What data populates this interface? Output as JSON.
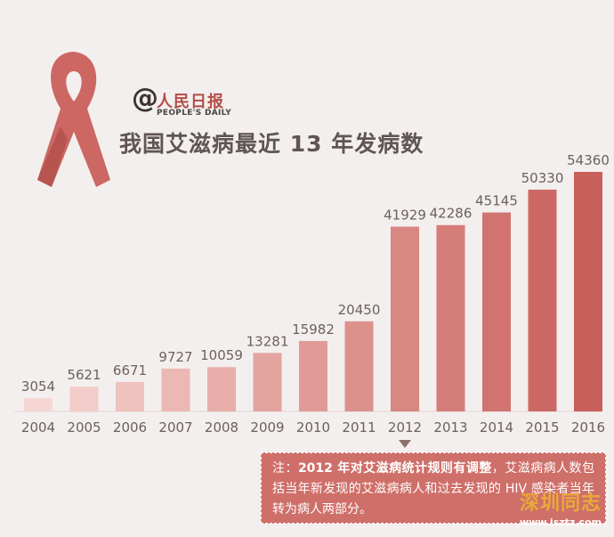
{
  "brand": {
    "at_symbol": "@",
    "name": "人民日报",
    "english": "PEOPLE'S DAILY"
  },
  "title": "我国艾滋病最近 13 年发病数",
  "colors": {
    "background": "#f3efee",
    "bar_light": "#f6d6d2",
    "bar_dark": "#c95f5b",
    "text": "#5f5554",
    "accent": "#b24d49",
    "note_bg": "#cf6f69"
  },
  "chart_data": {
    "type": "bar",
    "title": "我国艾滋病最近 13 年发病数",
    "xlabel": "",
    "ylabel": "",
    "categories": [
      "2004",
      "2005",
      "2006",
      "2007",
      "2008",
      "2009",
      "2010",
      "2011",
      "2012",
      "2013",
      "2014",
      "2015",
      "2016"
    ],
    "values": [
      3054,
      5621,
      6671,
      9727,
      10059,
      13281,
      15982,
      20450,
      41929,
      42286,
      45145,
      50330,
      54360
    ],
    "value_labels": [
      "3054",
      "5621",
      "6671",
      "9727",
      "10059",
      "13281",
      "15982",
      "20450",
      "41929",
      "42286",
      "45145",
      "50330",
      "54360"
    ],
    "ylim": [
      0,
      54360
    ],
    "grid": false,
    "legend": "none",
    "marker_category": "2012"
  },
  "note": {
    "prefix": "注：",
    "highlight": "2012 年对艾滋病统计规则有调整",
    "body": "，艾滋病病人数包括当年新发现的艾滋病病人和过去发现的 HIV 感染者当年转为病人两部分。"
  },
  "watermark": {
    "cn": "深圳同志",
    "url": "www.isztz.com"
  }
}
